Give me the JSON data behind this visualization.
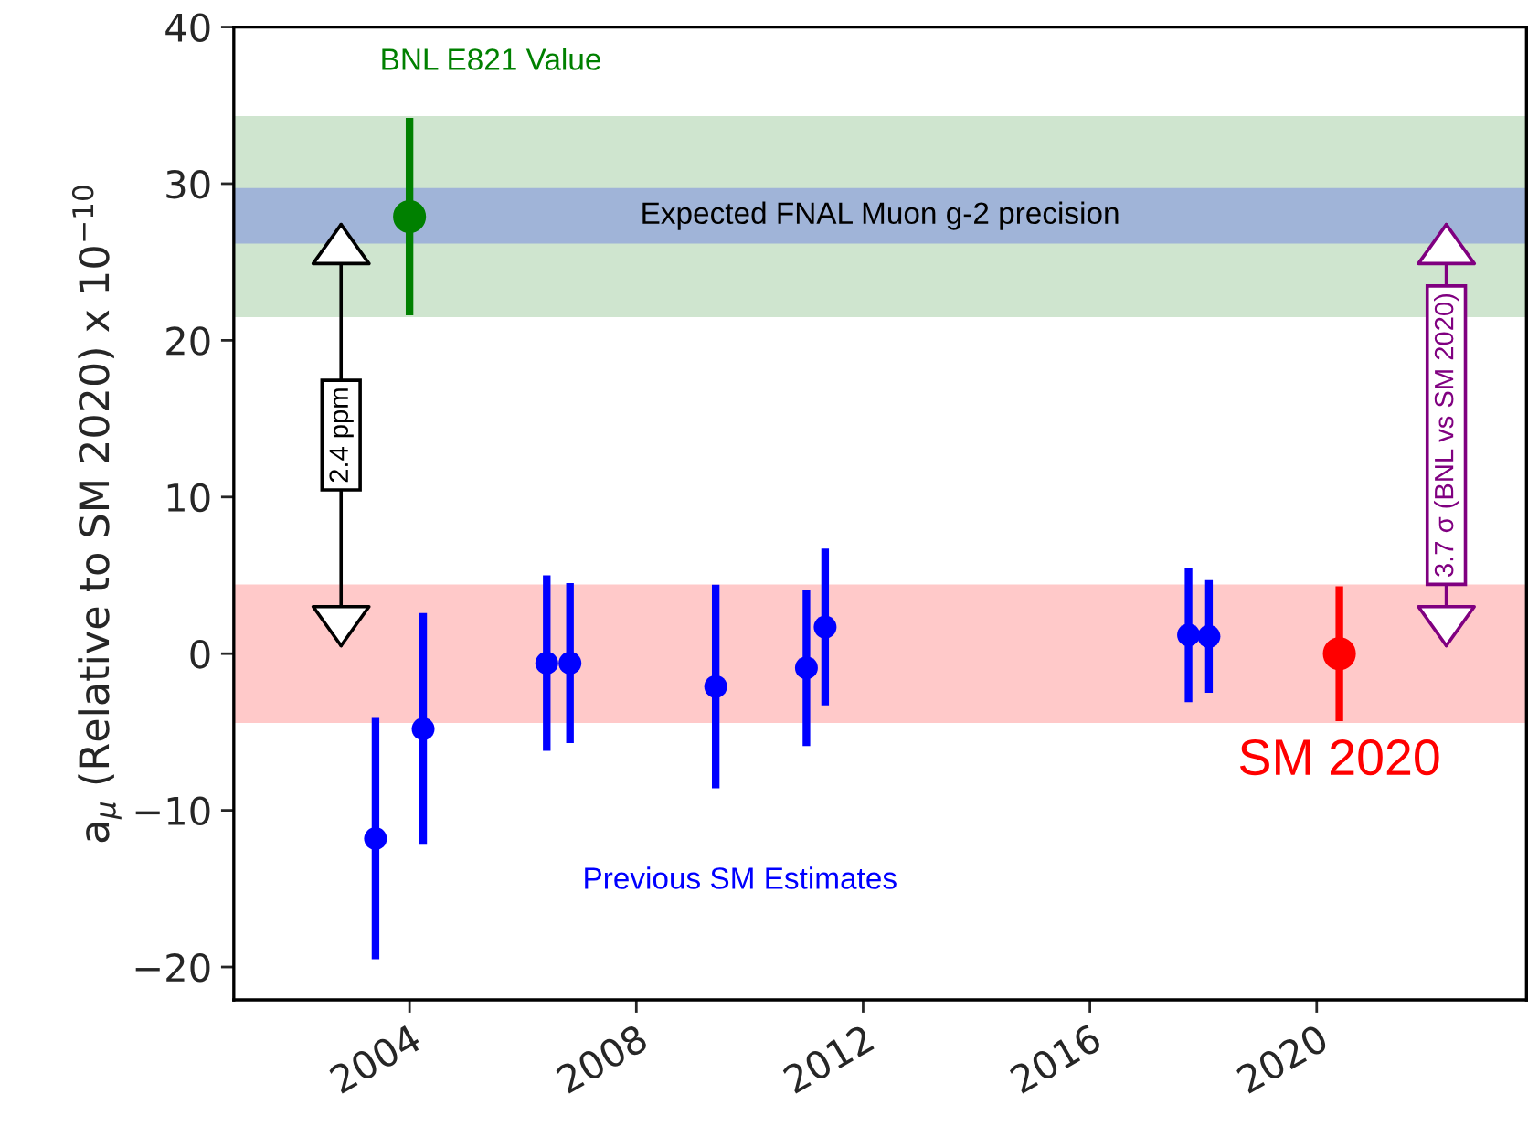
{
  "chart_data": {
    "type": "scatter",
    "ylabel": "a$_{μ}$ (Relative to SM 2020) x 10$^{−10}$",
    "series": [
      {
        "name": "BNL E821 Value",
        "color": "#008000",
        "x": [
          2004.0
        ],
        "values": [
          27.9
        ],
        "errors": [
          6.3
        ]
      },
      {
        "name": "Previous SM Estimates",
        "color": "#0000ff",
        "x": [
          2003.4,
          2004.24,
          2006.42,
          2006.83,
          2009.4,
          2011.0,
          2011.33,
          2017.74,
          2018.1
        ],
        "values": [
          -11.8,
          -4.8,
          -0.6,
          -0.6,
          -2.1,
          -0.9,
          1.7,
          1.2,
          1.1
        ],
        "errors": [
          7.7,
          7.4,
          5.6,
          5.1,
          6.5,
          5.0,
          5.0,
          4.3,
          3.6
        ]
      },
      {
        "name": "SM 2020",
        "color": "#ff0000",
        "x": [
          2020.4
        ],
        "values": [
          0
        ],
        "errors": [
          4.3
        ]
      }
    ],
    "bands": [
      {
        "axis": "y",
        "from": 21.6,
        "to": 34.2,
        "color": "#cfe5cf"
      },
      {
        "axis": "y",
        "from": 26.3,
        "to": 29.6,
        "color": "#a0b4d8",
        "label": "Expected FNAL Muon g-2 precision"
      },
      {
        "axis": "y",
        "from": -4.3,
        "to": 4.3,
        "color": "#ffc9c9"
      }
    ],
    "annotations": [
      "2.4 ppm",
      "3.7 σ (BNL vs SM 2020)"
    ],
    "xlim": [
      2000.9,
      2023.7
    ],
    "xticks": [
      2004,
      2008,
      2012,
      2016,
      2020
    ],
    "ylim": [
      -22.1,
      40
    ],
    "yticks": [
      {
        "value": -20,
        "label": "−20"
      },
      {
        "value": -10,
        "label": "−10"
      },
      0,
      10,
      20,
      30,
      40
    ],
    "marker": "circle",
    "grid": false
  }
}
